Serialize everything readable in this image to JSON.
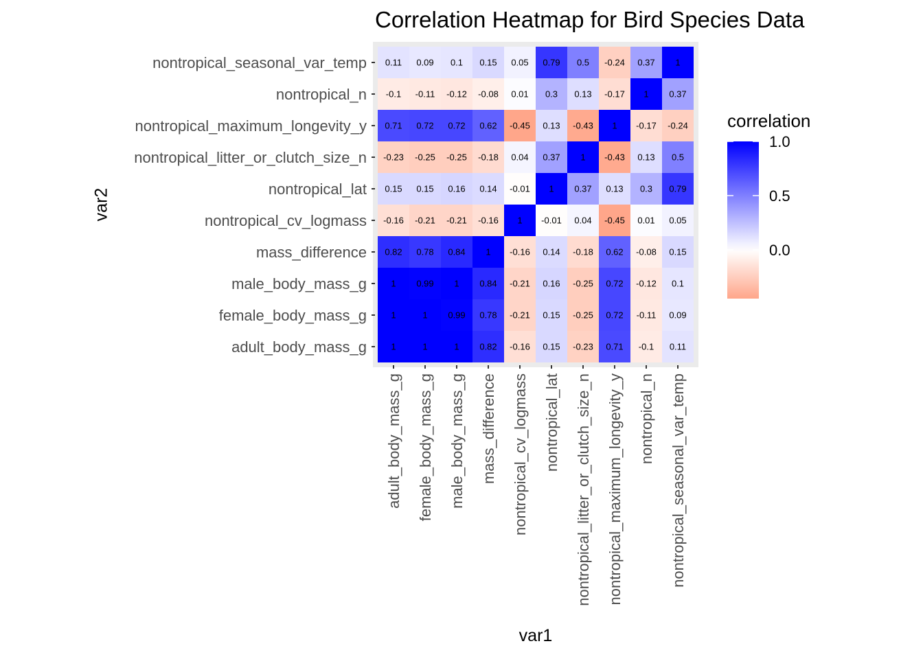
{
  "chart_data": {
    "type": "heatmap",
    "title": "Correlation Heatmap for Bird Species Data",
    "xlabel": "var1",
    "ylabel": "var2",
    "variables": [
      "adult_body_mass_g",
      "female_body_mass_g",
      "male_body_mass_g",
      "mass_difference",
      "nontropical_cv_logmass",
      "nontropical_lat",
      "nontropical_litter_or_clutch_size_n",
      "nontropical_maximum_longevity_y",
      "nontropical_n",
      "nontropical_seasonal_var_temp"
    ],
    "matrix": [
      [
        1,
        1,
        1,
        0.82,
        -0.16,
        0.15,
        -0.23,
        0.71,
        -0.1,
        0.11
      ],
      [
        1,
        1,
        0.99,
        0.78,
        -0.21,
        0.15,
        -0.25,
        0.72,
        -0.11,
        0.09
      ],
      [
        1,
        0.99,
        1,
        0.84,
        -0.21,
        0.16,
        -0.25,
        0.72,
        -0.12,
        0.1
      ],
      [
        0.82,
        0.78,
        0.84,
        1,
        -0.16,
        0.14,
        -0.18,
        0.62,
        -0.08,
        0.15
      ],
      [
        -0.16,
        -0.21,
        -0.21,
        -0.16,
        1,
        -0.01,
        0.04,
        -0.45,
        0.01,
        0.05
      ],
      [
        0.15,
        0.15,
        0.16,
        0.14,
        -0.01,
        1,
        0.37,
        0.13,
        0.3,
        0.79
      ],
      [
        -0.23,
        -0.25,
        -0.25,
        -0.18,
        0.04,
        0.37,
        1,
        -0.43,
        0.13,
        0.5
      ],
      [
        0.71,
        0.72,
        0.72,
        0.62,
        -0.45,
        0.13,
        -0.43,
        1,
        -0.17,
        -0.24
      ],
      [
        -0.1,
        -0.11,
        -0.12,
        -0.08,
        0.01,
        0.3,
        0.13,
        -0.17,
        1,
        0.37
      ],
      [
        0.11,
        0.09,
        0.1,
        0.15,
        0.05,
        0.79,
        0.5,
        -0.24,
        0.37,
        1
      ]
    ],
    "legend": {
      "title": "correlation",
      "ticks": [
        "0.0",
        "0.5",
        "1.0"
      ],
      "tick_values": [
        0,
        0.5,
        1
      ],
      "range": [
        -0.45,
        1
      ],
      "placement": "right"
    },
    "colors": {
      "low": "#ffa68a",
      "mid": "#ffffff",
      "high": "#0000ff",
      "panel_background": "#ebebeb",
      "grid": "#ffffff"
    }
  }
}
